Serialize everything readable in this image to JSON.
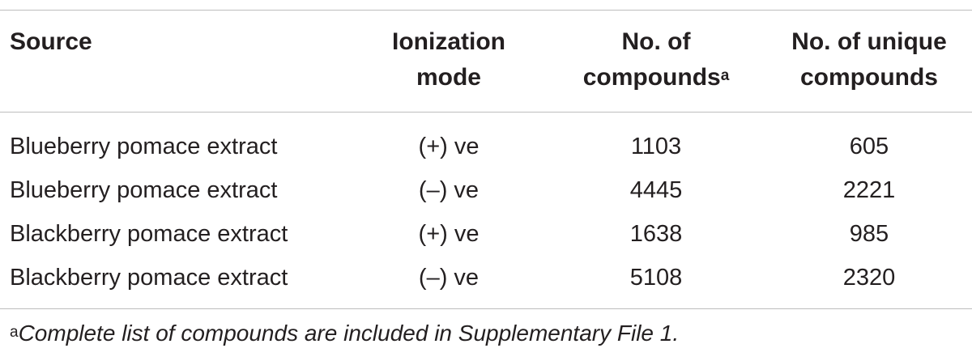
{
  "table": {
    "headers": {
      "source": "Source",
      "ionization_line1": "Ionization",
      "ionization_line2": "mode",
      "compounds_line1": "No. of",
      "compounds_line2": "compounds",
      "compounds_sup": "a",
      "unique_line1": "No. of unique",
      "unique_line2": "compounds"
    },
    "rows": [
      {
        "source": "Blueberry pomace extract",
        "mode": "(+) ve",
        "compounds": "1103",
        "unique": "605"
      },
      {
        "source": "Blueberry pomace extract",
        "mode": "(–) ve",
        "compounds": "4445",
        "unique": "2221"
      },
      {
        "source": "Blackberry pomace extract",
        "mode": "(+) ve",
        "compounds": "1638",
        "unique": "985"
      },
      {
        "source": "Blackberry pomace extract",
        "mode": "(–) ve",
        "compounds": "5108",
        "unique": "2320"
      }
    ],
    "footnote": {
      "mark": "a",
      "text": "Complete list of compounds are included in Supplementary File 1."
    }
  }
}
